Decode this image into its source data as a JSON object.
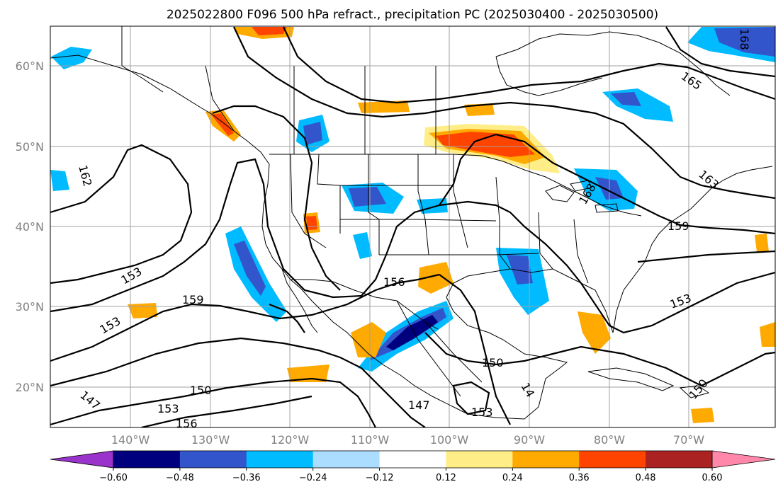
{
  "title": "2025022800 F096 500 hPa refract., precipitation PC (2025030400 - 2025030500)",
  "map": {
    "lat_ticks": [
      "60°N",
      "50°N",
      "40°N",
      "30°N",
      "20°N"
    ],
    "lon_ticks": [
      "140°W",
      "130°W",
      "120°W",
      "110°W",
      "100°W",
      "90°W",
      "80°W",
      "70°W"
    ]
  },
  "colorbar": {
    "ticks": [
      "−0.60",
      "−0.48",
      "−0.36",
      "−0.24",
      "−0.12",
      "0.12",
      "0.24",
      "0.36",
      "0.48",
      "0.60"
    ],
    "under_color": "#9933cc",
    "over_color": "#ff88aa",
    "colors": [
      "#00007f",
      "#3355cc",
      "#00bbff",
      "#aaddff",
      "#ffffff",
      "#ffee88",
      "#ffaa00",
      "#ff4400",
      "#aa2222"
    ]
  },
  "contour_labels": [
    "162",
    "153",
    "159",
    "153",
    "147",
    "150",
    "153",
    "156",
    "156",
    "150",
    "147",
    "153",
    "14",
    "150",
    "153",
    "159",
    "163",
    "168",
    "165",
    "168"
  ]
}
